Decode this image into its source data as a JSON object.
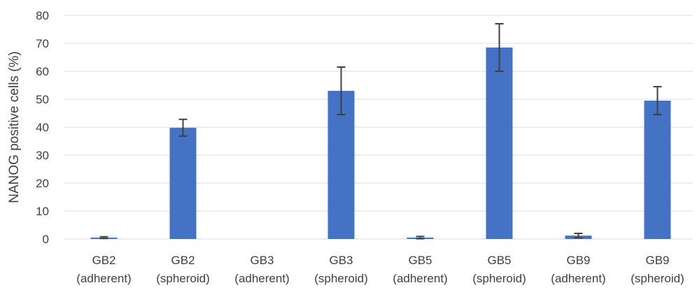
{
  "chart_data": {
    "type": "bar",
    "categories": [
      [
        "GB2",
        "(adherent)"
      ],
      [
        "GB2",
        "(spheroid)"
      ],
      [
        "GB3",
        "(adherent)"
      ],
      [
        "GB3",
        "(spheroid)"
      ],
      [
        "GB5",
        "(adherent)"
      ],
      [
        "GB5",
        "(spheroid)"
      ],
      [
        "GB9",
        "(adherent)"
      ],
      [
        "GB9",
        "(spheroid)"
      ]
    ],
    "values": [
      0.5,
      39.8,
      0,
      53.0,
      0.5,
      68.5,
      1.2,
      49.5
    ],
    "errors": [
      0.3,
      3.0,
      0,
      8.5,
      0.4,
      8.5,
      0.8,
      5.0
    ],
    "ylabel": "NANOG positive cells (%)",
    "xlabel": "",
    "title": "",
    "ylim": [
      0,
      80
    ],
    "yticks": [
      0,
      10,
      20,
      30,
      40,
      50,
      60,
      70,
      80
    ],
    "grid": true,
    "legend": "none",
    "bar_color": "#4472C4",
    "error_bar_color": "#404040"
  }
}
